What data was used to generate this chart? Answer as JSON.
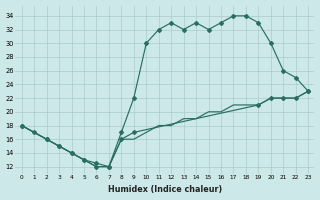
{
  "background_color": "#cce8e8",
  "grid_color": "#aacccc",
  "line_color": "#2a6e62",
  "xlabel": "Humidex (Indice chaleur)",
  "xlim": [
    -0.5,
    23.5
  ],
  "ylim": [
    11,
    35.5
  ],
  "yticks": [
    12,
    14,
    16,
    18,
    20,
    22,
    24,
    26,
    28,
    30,
    32,
    34
  ],
  "xticks": [
    0,
    1,
    2,
    3,
    4,
    5,
    6,
    7,
    8,
    9,
    10,
    11,
    12,
    13,
    14,
    15,
    16,
    17,
    18,
    19,
    20,
    21,
    22,
    23
  ],
  "series1_x": [
    0,
    1,
    2,
    3,
    4,
    5,
    6,
    7,
    8,
    9,
    10,
    11,
    12,
    13,
    14,
    15,
    16,
    17,
    18,
    19,
    20,
    21,
    22,
    23
  ],
  "series1_y": [
    18,
    17,
    16,
    15,
    14,
    13,
    12,
    12,
    17,
    22,
    30,
    32,
    33,
    32,
    33,
    32,
    33,
    34,
    34,
    33,
    30,
    26,
    25,
    23
  ],
  "series2_x": [
    0,
    1,
    2,
    3,
    4,
    5,
    6,
    7,
    8,
    9,
    10,
    11,
    12,
    13,
    14,
    15,
    16,
    17,
    18,
    19,
    20,
    21,
    22,
    23
  ],
  "series2_y": [
    18,
    17,
    16,
    15,
    14,
    13,
    12,
    12,
    16,
    16,
    17,
    18,
    18,
    19,
    19,
    20,
    20,
    21,
    21,
    21,
    22,
    22,
    22,
    23
  ],
  "series3_x": [
    0,
    2,
    3,
    4,
    5,
    6,
    7,
    8,
    9,
    19,
    20,
    21,
    22,
    23
  ],
  "series3_y": [
    18,
    16,
    15,
    14,
    13,
    12.5,
    12,
    16,
    17,
    21,
    22,
    22,
    22,
    23
  ]
}
